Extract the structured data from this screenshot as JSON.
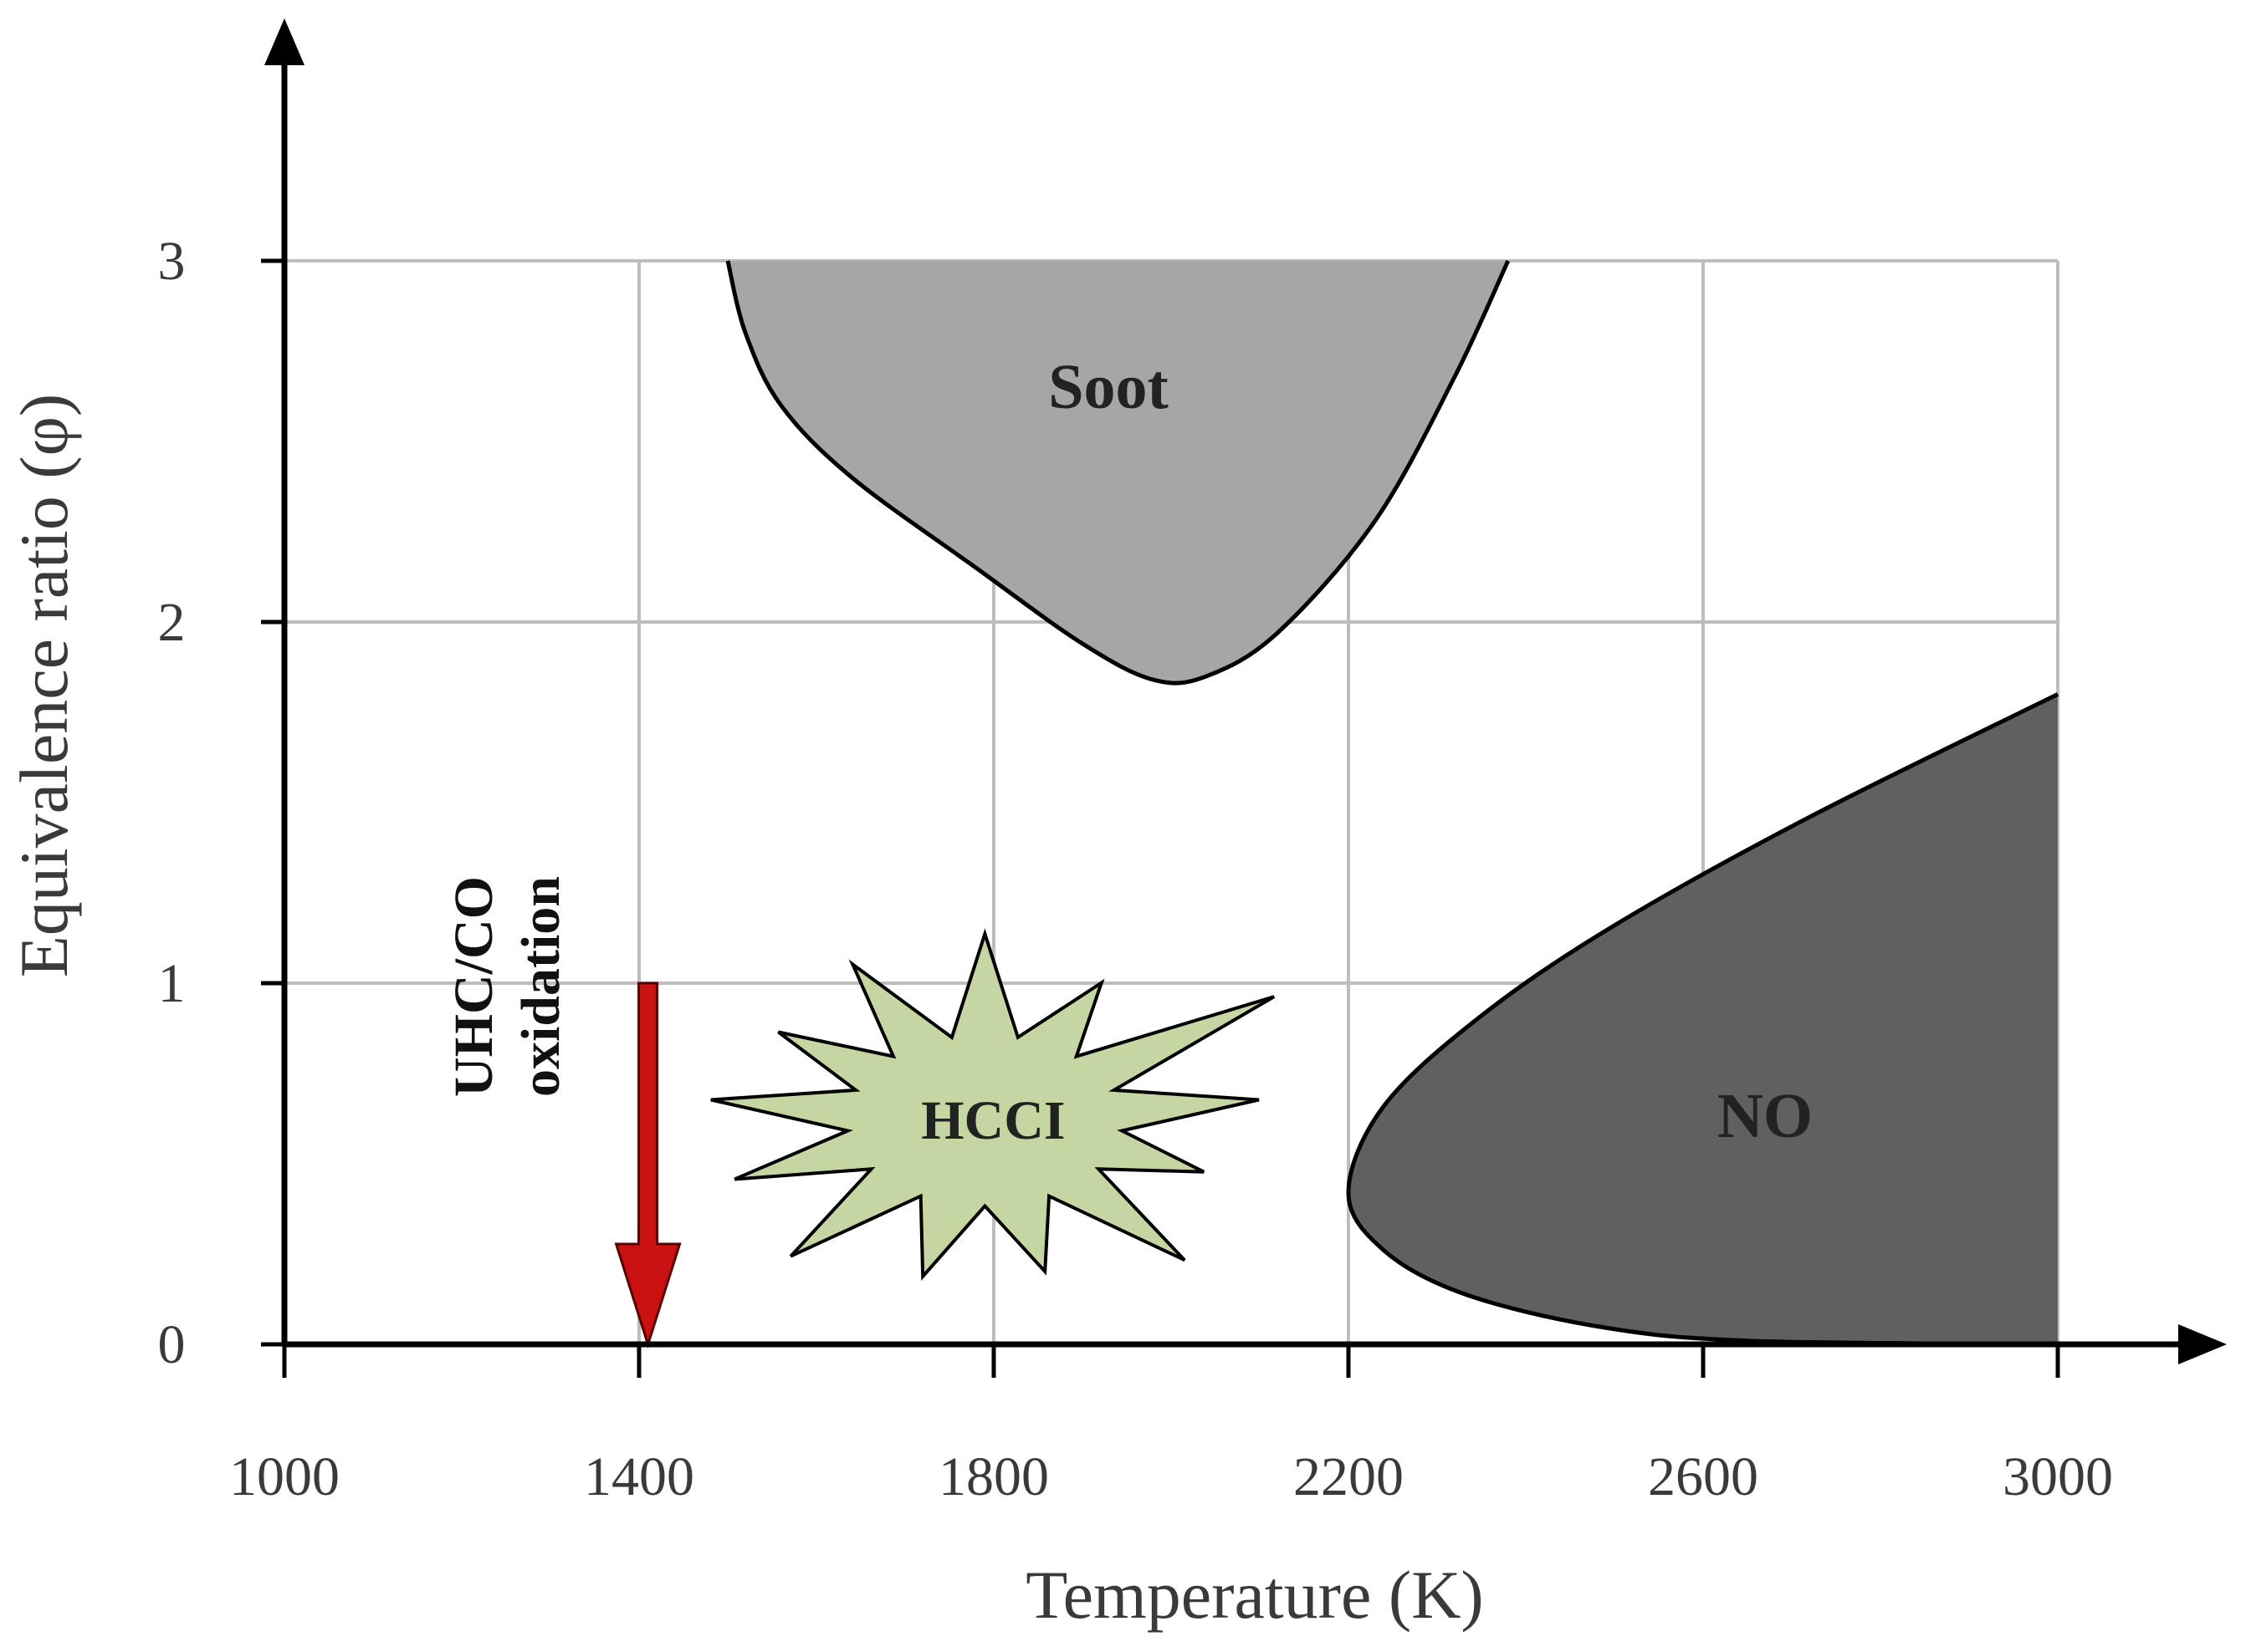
{
  "chart_data": {
    "type": "area",
    "title": "",
    "xlabel": "Temperature (K)",
    "ylabel": "Equivalence ratio (φ)",
    "xlim": [
      1000,
      3000
    ],
    "ylim": [
      0,
      3
    ],
    "x_ticks": [
      1000,
      1400,
      1800,
      2200,
      2600,
      3000
    ],
    "y_ticks": [
      0,
      1,
      2,
      3
    ],
    "x_tick_labels": [
      "1000",
      "1400",
      "1800",
      "2200",
      "2600",
      "3000"
    ],
    "y_tick_labels": [
      "0",
      "1",
      "2",
      "3"
    ],
    "grid": true,
    "regions": [
      {
        "name": "Soot",
        "label": "Soot",
        "color": "#a6a6a6",
        "boundary": [
          [
            1500,
            3.0
          ],
          [
            1520,
            2.8
          ],
          [
            1560,
            2.6
          ],
          [
            1640,
            2.4
          ],
          [
            1780,
            2.15
          ],
          [
            1900,
            1.94
          ],
          [
            1980,
            1.84
          ],
          [
            2040,
            1.85
          ],
          [
            2120,
            1.97
          ],
          [
            2230,
            2.28
          ],
          [
            2320,
            2.68
          ],
          [
            2380,
            3.0
          ]
        ]
      },
      {
        "name": "NO",
        "label": "NO",
        "color": "#606060",
        "boundary": [
          [
            3000,
            1.8
          ],
          [
            2720,
            1.46
          ],
          [
            2500,
            1.16
          ],
          [
            2350,
            0.91
          ],
          [
            2240,
            0.66
          ],
          [
            2200,
            0.42
          ],
          [
            2240,
            0.26
          ],
          [
            2330,
            0.14
          ],
          [
            2480,
            0.05
          ],
          [
            2650,
            0.01
          ],
          [
            3000,
            0.0
          ]
        ]
      },
      {
        "name": "HCCI",
        "label": "HCCI",
        "color": "#c5d6a3",
        "center": [
          1790,
          0.62
        ]
      }
    ],
    "annotations": [
      {
        "type": "arrow",
        "name": "UHC/CO oxidation",
        "lines": [
          "UHC/CO",
          "oxidation"
        ],
        "color": "#cc1111",
        "x": 1410,
        "from_y": 1.0,
        "to_y": 0.0
      }
    ]
  }
}
